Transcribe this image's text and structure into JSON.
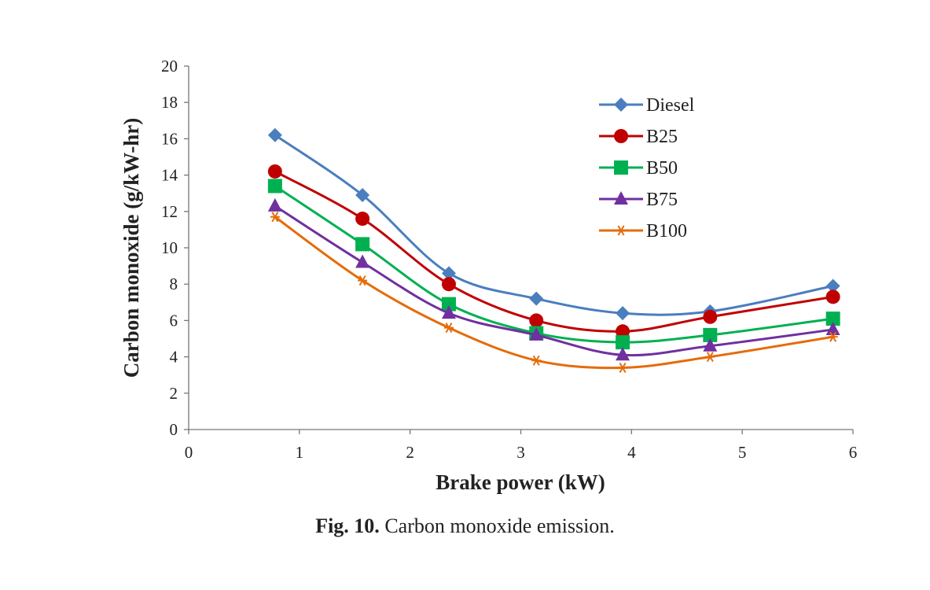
{
  "chart_data": {
    "type": "line",
    "title": "",
    "xlabel": "Brake power (kW)",
    "ylabel": "Carbon monoxide (g/kW-hr)",
    "xlim": [
      0,
      6
    ],
    "ylim": [
      0,
      20
    ],
    "xticks": [
      0,
      1,
      2,
      3,
      4,
      5,
      6
    ],
    "yticks": [
      0,
      2,
      4,
      6,
      8,
      10,
      12,
      14,
      16,
      18,
      20
    ],
    "x": [
      0.78,
      1.57,
      2.35,
      3.14,
      3.92,
      4.71,
      5.82
    ],
    "legend_position": "top-right",
    "series": [
      {
        "name": "Diesel",
        "color": "#4a7ebf",
        "marker": "diamond",
        "values": [
          16.2,
          12.9,
          8.6,
          7.2,
          6.4,
          6.5,
          7.9
        ]
      },
      {
        "name": "B25",
        "color": "#c00000",
        "marker": "circle",
        "values": [
          14.2,
          11.6,
          8.0,
          6.0,
          5.4,
          6.2,
          7.3
        ]
      },
      {
        "name": "B50",
        "color": "#00b050",
        "marker": "square",
        "values": [
          13.4,
          10.2,
          6.9,
          5.3,
          4.8,
          5.2,
          6.1
        ]
      },
      {
        "name": "B75",
        "color": "#7030a0",
        "marker": "triangle",
        "values": [
          12.3,
          9.2,
          6.4,
          5.2,
          4.1,
          4.6,
          5.5
        ]
      },
      {
        "name": "B100",
        "color": "#e46c0a",
        "marker": "asterisk",
        "values": [
          11.7,
          8.2,
          5.6,
          3.8,
          3.4,
          4.0,
          5.1
        ]
      }
    ]
  },
  "caption": {
    "lead": "Fig. 10.",
    "text": "Carbon monoxide emission."
  }
}
